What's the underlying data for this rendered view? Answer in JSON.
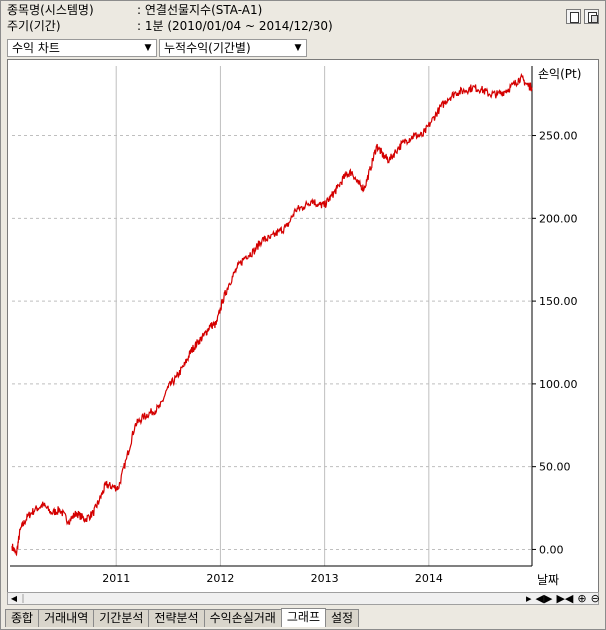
{
  "info": {
    "item_label": "종목명(시스템명)",
    "item_value": ": 연결선물지수(STA-A1)",
    "period_label": "주기(기간)",
    "period_value": ": 1분 (2010/01/04 ~ 2014/12/30)"
  },
  "selects": {
    "chart_type": "수익 차트",
    "profit_type": "누적수익(기간별)"
  },
  "colors": {
    "line": "#d40000",
    "grid": "#bfbfbf"
  },
  "chart_data": {
    "type": "line",
    "y_unit_label": "손익(Pt)",
    "x_unit_label": "날짜",
    "x_ticks": [
      "2011",
      "2012",
      "2013",
      "2014"
    ],
    "y_ticks": [
      "0.00",
      "50.00",
      "100.00",
      "150.00",
      "200.00",
      "250.00"
    ],
    "ylim": [
      -10,
      292
    ],
    "xlim": [
      2010.0,
      2014.99
    ],
    "grid": true,
    "series": [
      {
        "values": [
          [
            2010.0,
            2
          ],
          [
            2010.04,
            -3
          ],
          [
            2010.08,
            12
          ],
          [
            2010.15,
            20
          ],
          [
            2010.22,
            24
          ],
          [
            2010.3,
            27
          ],
          [
            2010.38,
            22
          ],
          [
            2010.46,
            24
          ],
          [
            2010.54,
            17
          ],
          [
            2010.62,
            22
          ],
          [
            2010.7,
            18
          ],
          [
            2010.78,
            22
          ],
          [
            2010.84,
            30
          ],
          [
            2010.9,
            39
          ],
          [
            2010.96,
            38
          ],
          [
            2011.02,
            37
          ],
          [
            2011.1,
            55
          ],
          [
            2011.18,
            75
          ],
          [
            2011.26,
            80
          ],
          [
            2011.34,
            83
          ],
          [
            2011.42,
            86
          ],
          [
            2011.5,
            98
          ],
          [
            2011.58,
            104
          ],
          [
            2011.66,
            112
          ],
          [
            2011.72,
            120
          ],
          [
            2011.78,
            125
          ],
          [
            2011.84,
            129
          ],
          [
            2011.9,
            135
          ],
          [
            2011.96,
            136
          ],
          [
            2012.02,
            150
          ],
          [
            2012.08,
            160
          ],
          [
            2012.16,
            170
          ],
          [
            2012.24,
            177
          ],
          [
            2012.32,
            180
          ],
          [
            2012.4,
            187
          ],
          [
            2012.48,
            188
          ],
          [
            2012.56,
            192
          ],
          [
            2012.64,
            195
          ],
          [
            2012.72,
            205
          ],
          [
            2012.8,
            207
          ],
          [
            2012.88,
            211
          ],
          [
            2012.94,
            208
          ],
          [
            2013.0,
            208
          ],
          [
            2013.06,
            213
          ],
          [
            2013.12,
            218
          ],
          [
            2013.2,
            226
          ],
          [
            2013.26,
            228
          ],
          [
            2013.32,
            221
          ],
          [
            2013.38,
            218
          ],
          [
            2013.44,
            230
          ],
          [
            2013.5,
            244
          ],
          [
            2013.56,
            238
          ],
          [
            2013.62,
            235
          ],
          [
            2013.7,
            242
          ],
          [
            2013.78,
            247
          ],
          [
            2013.86,
            250
          ],
          [
            2013.94,
            250
          ],
          [
            2014.02,
            258
          ],
          [
            2014.1,
            266
          ],
          [
            2014.18,
            272
          ],
          [
            2014.26,
            276
          ],
          [
            2014.34,
            277
          ],
          [
            2014.42,
            279
          ],
          [
            2014.5,
            278
          ],
          [
            2014.58,
            275
          ],
          [
            2014.66,
            275
          ],
          [
            2014.74,
            277
          ],
          [
            2014.82,
            281
          ],
          [
            2014.88,
            285
          ],
          [
            2014.94,
            281
          ],
          [
            2014.99,
            279
          ]
        ]
      }
    ]
  },
  "tabs": [
    "종합",
    "거래내역",
    "기간분석",
    "전략분석",
    "수익손실거래",
    "그래프",
    "설정"
  ],
  "active_tab": "그래프"
}
